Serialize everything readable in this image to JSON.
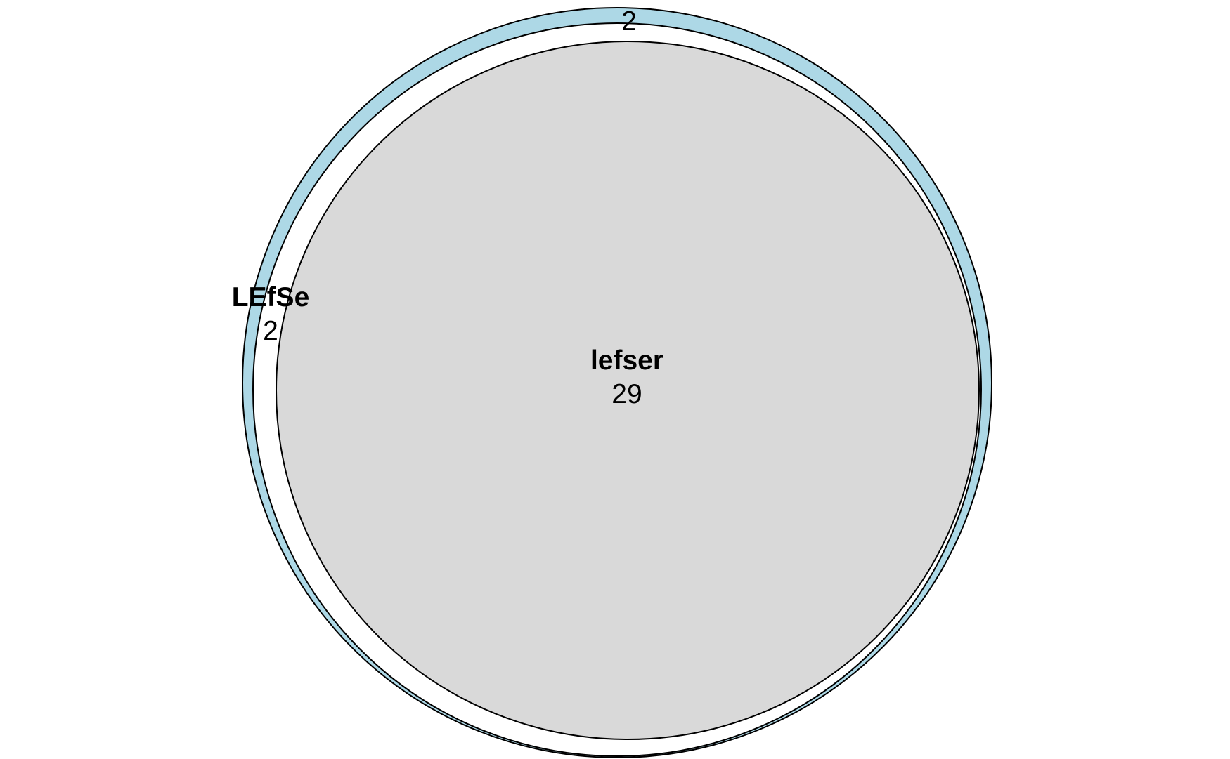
{
  "colors": {
    "lefse_only": "#add8e6",
    "overlap": "#d9d9d9",
    "lefser_only": "#ffffff",
    "outline": "#000000"
  },
  "sets": [
    {
      "name": "LEfSe",
      "count": "2"
    },
    {
      "name": "lefser",
      "count": "29"
    }
  ],
  "regions": {
    "lefse_top_count": "2"
  }
}
